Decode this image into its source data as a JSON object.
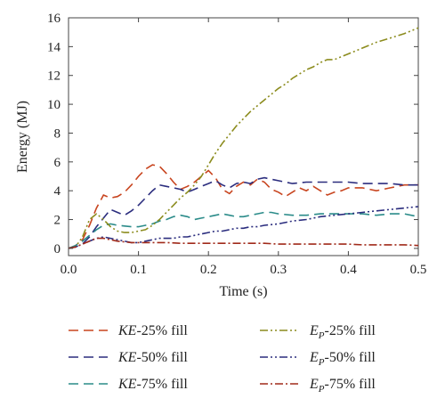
{
  "chart_data": {
    "type": "line",
    "xlabel": "Time (s)",
    "ylabel": "Energy (MJ)",
    "xlim": [
      0,
      0.5
    ],
    "ylim": [
      -0.5,
      16
    ],
    "xticks": [
      "0.0",
      "0.1",
      "0.2",
      "0.3",
      "0.4",
      "0.5"
    ],
    "xtick_values": [
      0,
      0.1,
      0.2,
      0.3,
      0.4,
      0.5
    ],
    "yticks": [
      "0",
      "2",
      "4",
      "6",
      "8",
      "10",
      "12",
      "14",
      "16"
    ],
    "ytick_values": [
      0,
      2,
      4,
      6,
      8,
      10,
      12,
      14,
      16
    ],
    "grid": false,
    "legend_placement": "below",
    "series": [
      {
        "name_main": "KE",
        "name_sub": "",
        "name_suffix": "-25% fill",
        "color": "#c8451f",
        "dash": "long-dash",
        "points": [
          [
            0,
            0
          ],
          [
            0.01,
            0.2
          ],
          [
            0.02,
            0.6
          ],
          [
            0.03,
            1.6
          ],
          [
            0.04,
            2.8
          ],
          [
            0.05,
            3.7
          ],
          [
            0.06,
            3.5
          ],
          [
            0.07,
            3.6
          ],
          [
            0.08,
            3.9
          ],
          [
            0.09,
            4.4
          ],
          [
            0.1,
            5.0
          ],
          [
            0.11,
            5.5
          ],
          [
            0.12,
            5.8
          ],
          [
            0.13,
            5.7
          ],
          [
            0.14,
            5.2
          ],
          [
            0.15,
            4.6
          ],
          [
            0.16,
            4.1
          ],
          [
            0.17,
            4.3
          ],
          [
            0.18,
            4.6
          ],
          [
            0.19,
            5.0
          ],
          [
            0.2,
            5.4
          ],
          [
            0.21,
            4.9
          ],
          [
            0.22,
            4.1
          ],
          [
            0.23,
            3.8
          ],
          [
            0.24,
            4.3
          ],
          [
            0.25,
            4.6
          ],
          [
            0.26,
            4.4
          ],
          [
            0.27,
            4.8
          ],
          [
            0.28,
            4.6
          ],
          [
            0.29,
            4.1
          ],
          [
            0.3,
            3.9
          ],
          [
            0.31,
            3.6
          ],
          [
            0.32,
            3.9
          ],
          [
            0.33,
            4.2
          ],
          [
            0.34,
            4.0
          ],
          [
            0.35,
            4.3
          ],
          [
            0.36,
            4.0
          ],
          [
            0.37,
            3.7
          ],
          [
            0.38,
            3.9
          ],
          [
            0.39,
            4.0
          ],
          [
            0.4,
            4.2
          ],
          [
            0.42,
            4.2
          ],
          [
            0.44,
            4.0
          ],
          [
            0.46,
            4.2
          ],
          [
            0.48,
            4.4
          ],
          [
            0.5,
            4.4
          ]
        ]
      },
      {
        "name_main": "KE",
        "name_sub": "",
        "name_suffix": "-50% fill",
        "color": "#2b2d7e",
        "dash": "long-dash",
        "points": [
          [
            0,
            0
          ],
          [
            0.01,
            0.1
          ],
          [
            0.02,
            0.3
          ],
          [
            0.03,
            0.8
          ],
          [
            0.04,
            1.5
          ],
          [
            0.05,
            2.1
          ],
          [
            0.06,
            2.7
          ],
          [
            0.07,
            2.5
          ],
          [
            0.08,
            2.3
          ],
          [
            0.09,
            2.6
          ],
          [
            0.1,
            3.0
          ],
          [
            0.11,
            3.5
          ],
          [
            0.12,
            4.0
          ],
          [
            0.13,
            4.4
          ],
          [
            0.14,
            4.3
          ],
          [
            0.15,
            4.2
          ],
          [
            0.16,
            4.1
          ],
          [
            0.17,
            3.9
          ],
          [
            0.18,
            4.1
          ],
          [
            0.19,
            4.3
          ],
          [
            0.2,
            4.5
          ],
          [
            0.21,
            4.7
          ],
          [
            0.22,
            4.4
          ],
          [
            0.23,
            4.2
          ],
          [
            0.24,
            4.5
          ],
          [
            0.25,
            4.6
          ],
          [
            0.26,
            4.5
          ],
          [
            0.27,
            4.8
          ],
          [
            0.28,
            4.9
          ],
          [
            0.3,
            4.7
          ],
          [
            0.32,
            4.5
          ],
          [
            0.34,
            4.6
          ],
          [
            0.36,
            4.6
          ],
          [
            0.38,
            4.6
          ],
          [
            0.4,
            4.6
          ],
          [
            0.42,
            4.5
          ],
          [
            0.44,
            4.5
          ],
          [
            0.46,
            4.5
          ],
          [
            0.48,
            4.4
          ],
          [
            0.5,
            4.4
          ]
        ]
      },
      {
        "name_main": "KE",
        "name_sub": "",
        "name_suffix": "-75% fill",
        "color": "#2a8b89",
        "dash": "long-dash",
        "points": [
          [
            0,
            0
          ],
          [
            0.01,
            0.2
          ],
          [
            0.02,
            0.5
          ],
          [
            0.03,
            0.9
          ],
          [
            0.04,
            1.3
          ],
          [
            0.05,
            1.6
          ],
          [
            0.06,
            1.7
          ],
          [
            0.07,
            1.6
          ],
          [
            0.08,
            1.55
          ],
          [
            0.09,
            1.5
          ],
          [
            0.1,
            1.5
          ],
          [
            0.11,
            1.6
          ],
          [
            0.12,
            1.7
          ],
          [
            0.13,
            1.9
          ],
          [
            0.14,
            2.0
          ],
          [
            0.15,
            2.2
          ],
          [
            0.16,
            2.3
          ],
          [
            0.17,
            2.2
          ],
          [
            0.18,
            2.0
          ],
          [
            0.19,
            2.1
          ],
          [
            0.2,
            2.2
          ],
          [
            0.21,
            2.3
          ],
          [
            0.22,
            2.4
          ],
          [
            0.23,
            2.3
          ],
          [
            0.24,
            2.2
          ],
          [
            0.25,
            2.2
          ],
          [
            0.26,
            2.3
          ],
          [
            0.27,
            2.4
          ],
          [
            0.28,
            2.5
          ],
          [
            0.29,
            2.5
          ],
          [
            0.3,
            2.4
          ],
          [
            0.32,
            2.3
          ],
          [
            0.34,
            2.3
          ],
          [
            0.36,
            2.4
          ],
          [
            0.38,
            2.4
          ],
          [
            0.4,
            2.4
          ],
          [
            0.42,
            2.4
          ],
          [
            0.44,
            2.3
          ],
          [
            0.46,
            2.4
          ],
          [
            0.48,
            2.4
          ],
          [
            0.5,
            2.2
          ]
        ]
      },
      {
        "name_main": "E",
        "name_sub": "P",
        "name_suffix": "-25% fill",
        "color": "#8c8c1e",
        "dash": "dash-dot-dot",
        "points": [
          [
            0,
            0
          ],
          [
            0.01,
            0.1
          ],
          [
            0.02,
            0.8
          ],
          [
            0.03,
            2.0
          ],
          [
            0.04,
            2.4
          ],
          [
            0.05,
            2.0
          ],
          [
            0.06,
            1.5
          ],
          [
            0.07,
            1.2
          ],
          [
            0.08,
            1.1
          ],
          [
            0.09,
            1.1
          ],
          [
            0.1,
            1.2
          ],
          [
            0.11,
            1.3
          ],
          [
            0.12,
            1.6
          ],
          [
            0.13,
            2.0
          ],
          [
            0.14,
            2.5
          ],
          [
            0.15,
            3.0
          ],
          [
            0.16,
            3.5
          ],
          [
            0.17,
            3.9
          ],
          [
            0.18,
            4.4
          ],
          [
            0.19,
            5.0
          ],
          [
            0.2,
            5.8
          ],
          [
            0.21,
            6.6
          ],
          [
            0.22,
            7.3
          ],
          [
            0.23,
            7.9
          ],
          [
            0.24,
            8.5
          ],
          [
            0.25,
            9.0
          ],
          [
            0.26,
            9.5
          ],
          [
            0.27,
            9.9
          ],
          [
            0.28,
            10.3
          ],
          [
            0.29,
            10.7
          ],
          [
            0.3,
            11.1
          ],
          [
            0.31,
            11.4
          ],
          [
            0.32,
            11.8
          ],
          [
            0.33,
            12.1
          ],
          [
            0.34,
            12.4
          ],
          [
            0.35,
            12.6
          ],
          [
            0.36,
            12.9
          ],
          [
            0.37,
            13.1
          ],
          [
            0.38,
            13.1
          ],
          [
            0.39,
            13.3
          ],
          [
            0.4,
            13.5
          ],
          [
            0.42,
            13.9
          ],
          [
            0.44,
            14.3
          ],
          [
            0.46,
            14.6
          ],
          [
            0.48,
            14.9
          ],
          [
            0.5,
            15.3
          ]
        ]
      },
      {
        "name_main": "E",
        "name_sub": "P",
        "name_suffix": "-50% fill",
        "color": "#2b2d7e",
        "dash": "dash-dot-dot",
        "points": [
          [
            0,
            0
          ],
          [
            0.01,
            0.1
          ],
          [
            0.02,
            0.3
          ],
          [
            0.03,
            0.5
          ],
          [
            0.04,
            0.7
          ],
          [
            0.05,
            0.8
          ],
          [
            0.06,
            0.7
          ],
          [
            0.07,
            0.6
          ],
          [
            0.08,
            0.5
          ],
          [
            0.09,
            0.4
          ],
          [
            0.1,
            0.4
          ],
          [
            0.11,
            0.5
          ],
          [
            0.12,
            0.6
          ],
          [
            0.13,
            0.7
          ],
          [
            0.14,
            0.7
          ],
          [
            0.15,
            0.7
          ],
          [
            0.16,
            0.8
          ],
          [
            0.17,
            0.8
          ],
          [
            0.18,
            0.9
          ],
          [
            0.19,
            1.0
          ],
          [
            0.2,
            1.1
          ],
          [
            0.21,
            1.2
          ],
          [
            0.22,
            1.2
          ],
          [
            0.23,
            1.3
          ],
          [
            0.24,
            1.4
          ],
          [
            0.25,
            1.4
          ],
          [
            0.26,
            1.5
          ],
          [
            0.27,
            1.5
          ],
          [
            0.28,
            1.6
          ],
          [
            0.3,
            1.7
          ],
          [
            0.32,
            1.9
          ],
          [
            0.34,
            2.0
          ],
          [
            0.36,
            2.2
          ],
          [
            0.38,
            2.3
          ],
          [
            0.4,
            2.4
          ],
          [
            0.42,
            2.5
          ],
          [
            0.44,
            2.6
          ],
          [
            0.46,
            2.7
          ],
          [
            0.48,
            2.8
          ],
          [
            0.5,
            2.9
          ]
        ]
      },
      {
        "name_main": "E",
        "name_sub": "P",
        "name_suffix": "-75% fill",
        "color": "#a02a1a",
        "dash": "dash-dot",
        "points": [
          [
            0,
            0
          ],
          [
            0.01,
            0.1
          ],
          [
            0.02,
            0.3
          ],
          [
            0.03,
            0.5
          ],
          [
            0.04,
            0.7
          ],
          [
            0.05,
            0.7
          ],
          [
            0.06,
            0.6
          ],
          [
            0.07,
            0.5
          ],
          [
            0.08,
            0.45
          ],
          [
            0.09,
            0.4
          ],
          [
            0.1,
            0.4
          ],
          [
            0.12,
            0.4
          ],
          [
            0.14,
            0.4
          ],
          [
            0.16,
            0.35
          ],
          [
            0.18,
            0.35
          ],
          [
            0.2,
            0.35
          ],
          [
            0.22,
            0.35
          ],
          [
            0.24,
            0.35
          ],
          [
            0.26,
            0.35
          ],
          [
            0.28,
            0.35
          ],
          [
            0.3,
            0.3
          ],
          [
            0.32,
            0.3
          ],
          [
            0.34,
            0.3
          ],
          [
            0.36,
            0.3
          ],
          [
            0.38,
            0.3
          ],
          [
            0.4,
            0.3
          ],
          [
            0.42,
            0.25
          ],
          [
            0.44,
            0.25
          ],
          [
            0.46,
            0.25
          ],
          [
            0.48,
            0.25
          ],
          [
            0.5,
            0.2
          ]
        ]
      }
    ]
  }
}
